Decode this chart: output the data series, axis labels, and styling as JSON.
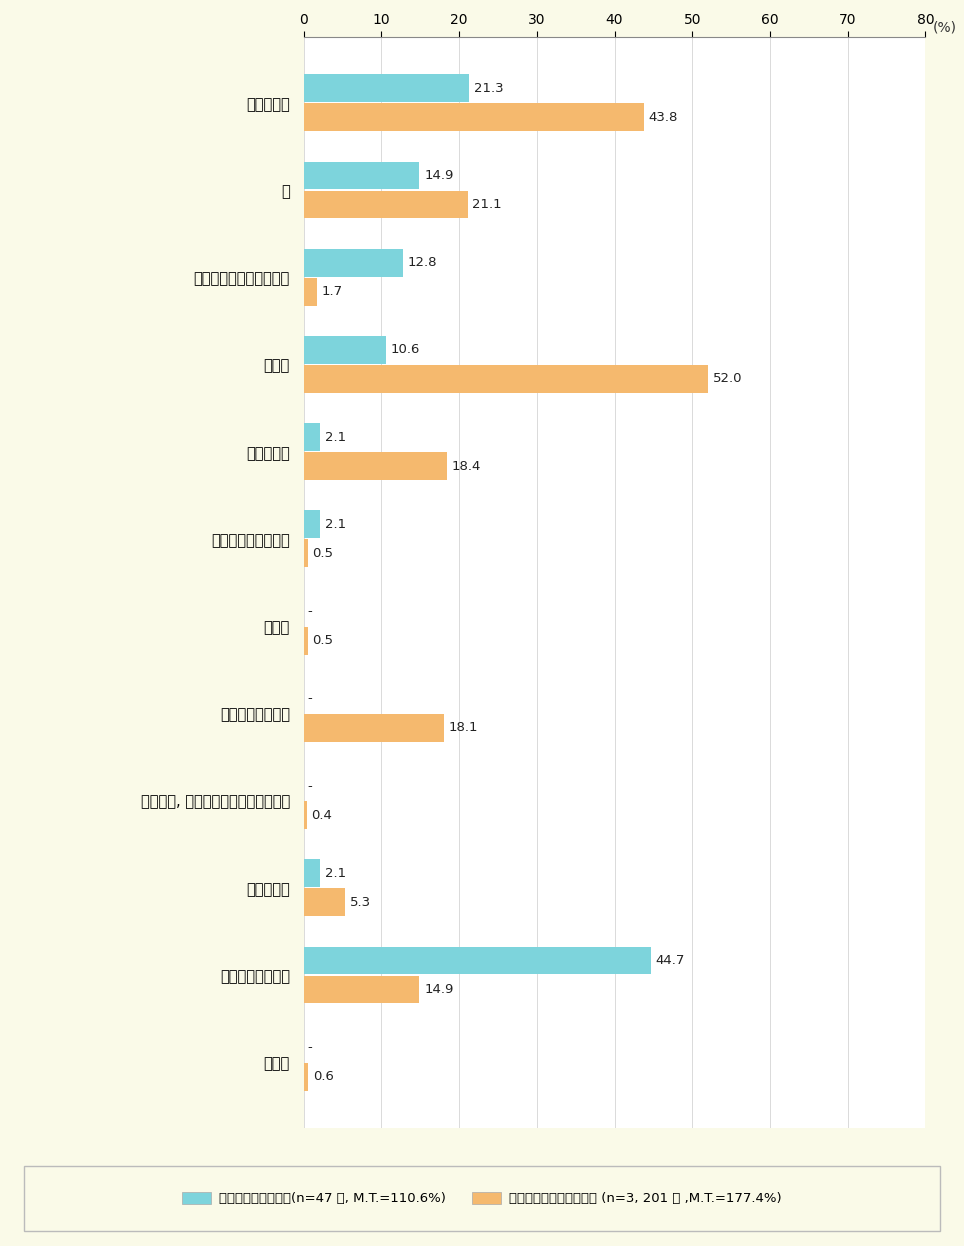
{
  "categories": [
    "友人・知人",
    "親",
    "カウンセラー・精神科医",
    "配偶者",
    "きょうだい",
    "ネット上の知り合い",
    "祖父母",
    "職場の同僚・上司",
    "都道府県, 市町村などの専門機関の人",
    "その他の人",
    "誰にも相談しない",
    "無回答"
  ],
  "group1_values": [
    21.3,
    14.9,
    12.8,
    10.6,
    2.1,
    2.1,
    null,
    null,
    null,
    2.1,
    44.7,
    null
  ],
  "group2_values": [
    43.8,
    21.1,
    1.7,
    52.0,
    18.4,
    0.5,
    0.5,
    18.1,
    0.4,
    5.3,
    14.9,
    0.6
  ],
  "group1_label": "広義のひきこもり群(n=47 人, M.T.=110.6%)",
  "group2_label": "広義のひきこもり群以外 (n=3, 201 人 ,M.T.=177.4%)",
  "group1_color": "#7DD4DC",
  "group2_color": "#F5B96E",
  "xlim": [
    0,
    80
  ],
  "xticks": [
    0,
    10,
    20,
    30,
    40,
    50,
    60,
    70,
    80
  ],
  "bar_height": 0.32,
  "background_color": "#FAFAE8",
  "plot_bg_color": "#FFFFFF",
  "value_fontsize": 9.5,
  "label_fontsize": 10.5,
  "tick_fontsize": 10
}
